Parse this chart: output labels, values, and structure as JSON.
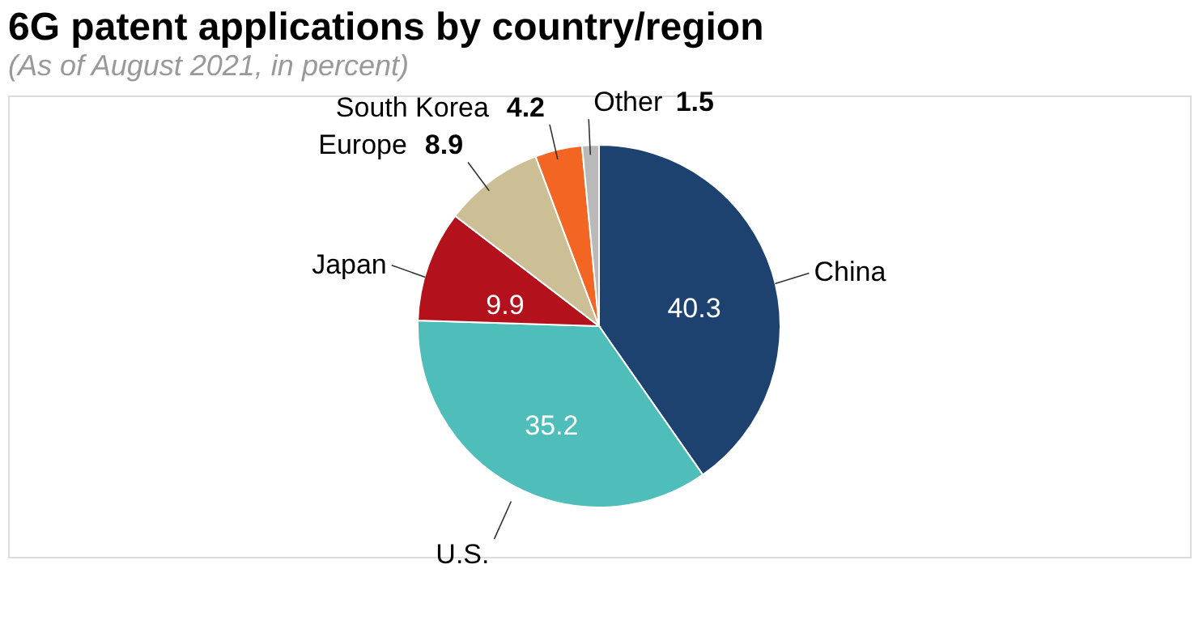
{
  "chart_data": {
    "type": "pie",
    "title": "6G patent applications by country/region",
    "subtitle": "(As of August 2021, in percent)",
    "categories": [
      "China",
      "U.S.",
      "Japan",
      "Europe",
      "South Korea",
      "Other"
    ],
    "values": [
      40.3,
      35.2,
      9.9,
      8.9,
      4.2,
      1.5
    ],
    "colors": [
      "#1d4270",
      "#4fbdb9",
      "#b3111c",
      "#cdbf95",
      "#f26522",
      "#b9b9b9"
    ],
    "data_labels": true,
    "legend": false
  }
}
